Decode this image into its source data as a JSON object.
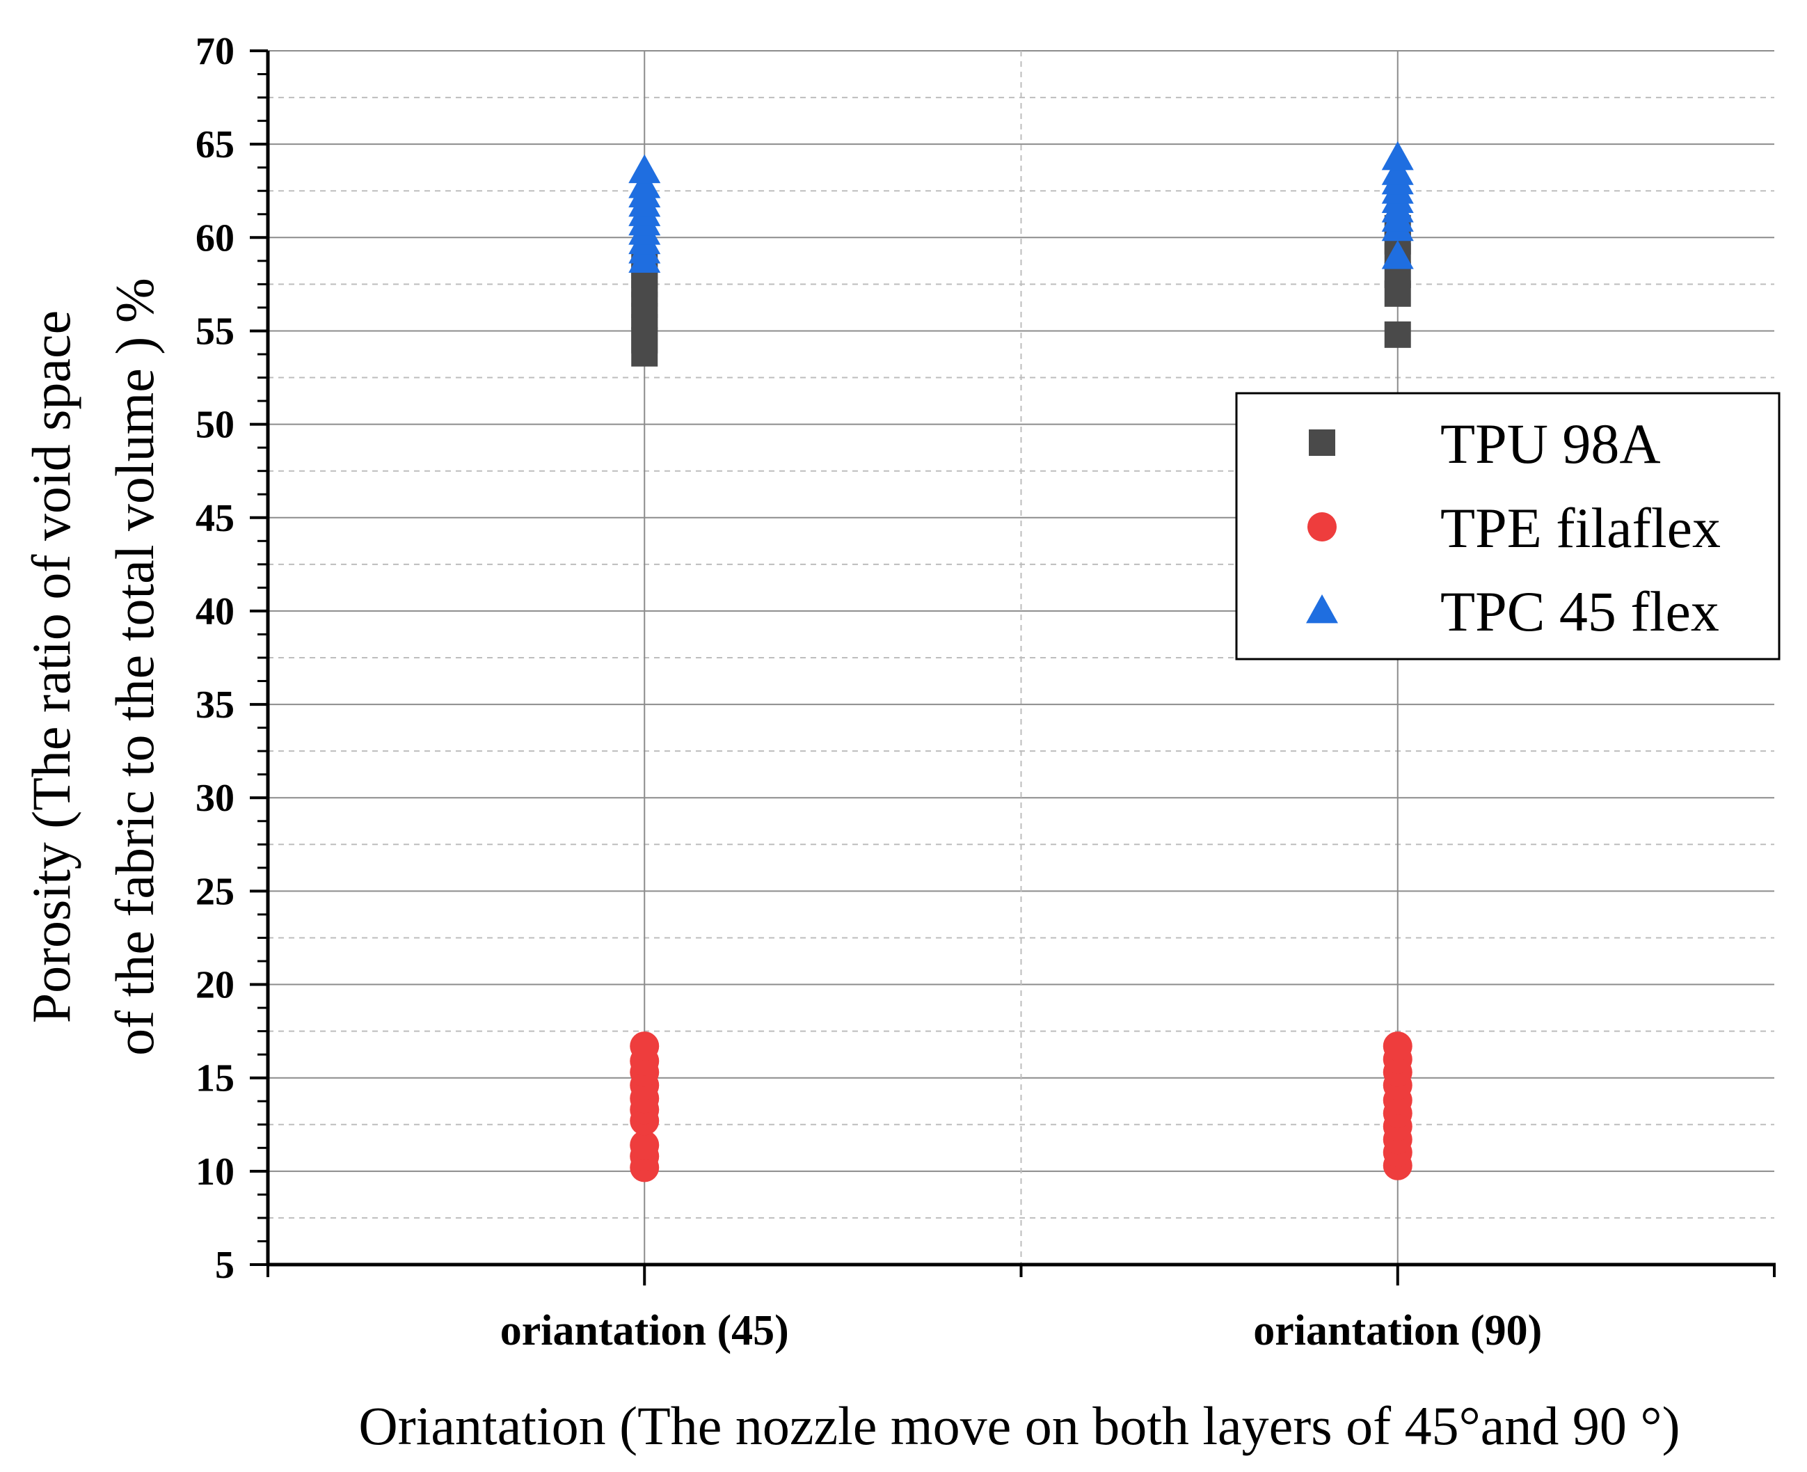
{
  "chart_data": {
    "type": "scatter",
    "title": "",
    "xlabel": "Oriantation (The nozzle move on both layers of 45°and 90 °)",
    "ylabel_line1": "Porosity (The ratio of void space",
    "ylabel_line2": "of the fabric to the total volume ) %",
    "categories": [
      "oriantation (45)",
      "oriantation (90)"
    ],
    "ylim": [
      5,
      70
    ],
    "yticks": [
      5,
      10,
      15,
      20,
      25,
      30,
      35,
      40,
      45,
      50,
      55,
      60,
      65,
      70
    ],
    "grid": true,
    "legend_position": "right",
    "series": [
      {
        "name": "TPU 98A",
        "marker": "square",
        "color": "#4a4a4a",
        "points": [
          {
            "category": "oriantation (45)",
            "values": [
              53.8,
              54.5,
              55.2,
              55.8,
              56.4,
              57.0,
              57.5,
              58.0,
              58.5
            ]
          },
          {
            "category": "oriantation (90)",
            "values": [
              54.8,
              57.0,
              58.0,
              59.0,
              59.8,
              60.5
            ]
          }
        ]
      },
      {
        "name": "TPE filaflex",
        "marker": "circle",
        "color": "#ee3d3d",
        "points": [
          {
            "category": "oriantation (45)",
            "values": [
              10.2,
              10.8,
              11.4,
              12.7,
              13.3,
              13.9,
              14.6,
              15.3,
              15.9,
              16.7
            ]
          },
          {
            "category": "oriantation (90)",
            "values": [
              10.3,
              11.0,
              11.7,
              12.4,
              13.1,
              13.8,
              14.6,
              15.3,
              16.0,
              16.7
            ]
          }
        ]
      },
      {
        "name": "TPC 45 flex",
        "marker": "triangle",
        "color": "#1f6ee0",
        "points": [
          {
            "category": "oriantation (45)",
            "values": [
              58.8,
              59.3,
              59.8,
              60.3,
              60.8,
              61.3,
              61.8,
              62.3,
              62.8,
              63.6
            ]
          },
          {
            "category": "oriantation (90)",
            "values": [
              59.0,
              60.5,
              61.0,
              61.5,
              62.0,
              62.5,
              63.0,
              63.5,
              64.3
            ]
          }
        ]
      }
    ]
  }
}
